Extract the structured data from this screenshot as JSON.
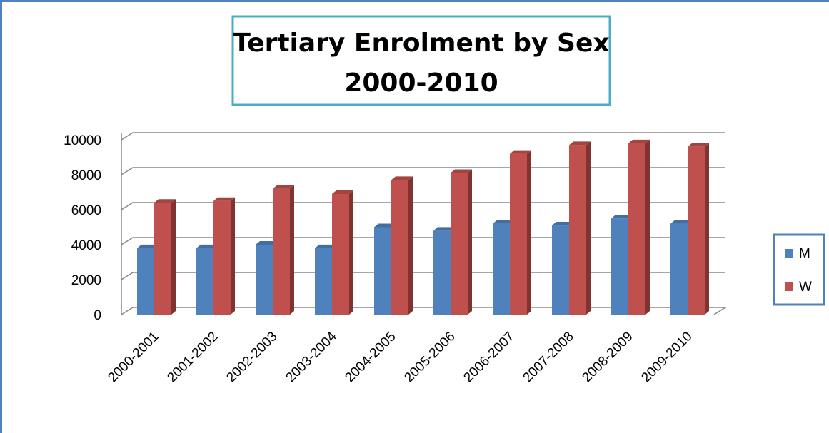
{
  "chart_data": {
    "type": "bar3d",
    "title": [
      "Tertiary Enrolment by Sex",
      "2000-2010"
    ],
    "categories": [
      "2000-2001",
      "2001-2002",
      "2002-2003",
      "2003-2004",
      "2004-2005",
      "2005-2006",
      "2006-2007",
      "2007-2008",
      "2008-2009",
      "2009-2010"
    ],
    "series": [
      {
        "name": "M",
        "color": "#4f81bd",
        "values": [
          3800,
          3800,
          4000,
          3800,
          5000,
          4800,
          5200,
          5100,
          5500,
          5200
        ]
      },
      {
        "name": "W",
        "color": "#c0504d",
        "values": [
          6400,
          6500,
          7200,
          6900,
          7700,
          8100,
          9200,
          9700,
          9800,
          9600
        ]
      }
    ],
    "ylim": [
      0,
      10000
    ],
    "yticks": [
      0,
      2000,
      4000,
      6000,
      8000,
      10000
    ],
    "grid": true,
    "legend": "right"
  }
}
